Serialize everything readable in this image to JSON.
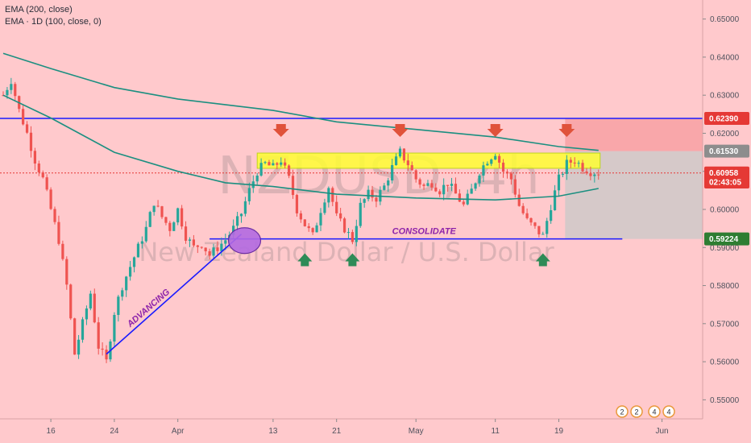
{
  "indicators": [
    "EMA (200, close)",
    "EMA · 1D (100, close, 0)"
  ],
  "watermark": {
    "symbol": "NZDUSD, 4h",
    "name": "New Zealand Dollar / U.S. Dollar"
  },
  "annotations": {
    "advancing": "ADVANCING",
    "consolidate": "CONSOLIDATE"
  },
  "price_tags": [
    {
      "label": "0.62390",
      "value": 0.6239,
      "bg": "#e53935"
    },
    {
      "label": "0.61530",
      "value": 0.6153,
      "bg": "#8d8d8d"
    },
    {
      "label": "0.60958",
      "value": 0.60958,
      "bg": "#e53935"
    },
    {
      "label": "02:43:05",
      "value": 0.6072,
      "bg": "#e53935"
    },
    {
      "label": "0.59224",
      "value": 0.59224,
      "bg": "#2e7d32"
    }
  ],
  "badges": [
    "2",
    "2",
    "4",
    "4"
  ],
  "colors": {
    "background": "#ffc9cc",
    "up": "#26a69a",
    "down": "#ef5350",
    "ema": "#1b8f80",
    "level": "#1a1aff",
    "zone": "#ffff33",
    "label": "#8e24aa"
  },
  "chart_data": {
    "type": "candlestick",
    "x_ticks": [
      "16",
      "24",
      "Apr",
      "13",
      "21",
      "May",
      "11",
      "19",
      "Jun"
    ],
    "y_ticks": [
      "0.65000",
      "0.64000",
      "0.63000",
      "0.62000",
      "0.61000",
      "0.60000",
      "0.59000",
      "0.58000",
      "0.57000",
      "0.56000",
      "0.55000"
    ],
    "ylim": [
      0.545,
      0.655
    ],
    "levels": {
      "resistance": 0.6239,
      "support": 0.59224,
      "zone_top": 0.6148,
      "zone_bottom": 0.6108
    },
    "price_anchors": [
      [
        "Mar 10",
        0.63
      ],
      [
        "Mar 11",
        0.634
      ],
      [
        "Mar 12",
        0.626
      ],
      [
        "Mar 13",
        0.62
      ],
      [
        "Mar 14",
        0.613
      ],
      [
        "Mar 15",
        0.608
      ],
      [
        "Mar 16",
        0.6
      ],
      [
        "Mar 17",
        0.592
      ],
      [
        "Mar 18",
        0.58
      ],
      [
        "Mar 19",
        0.562
      ],
      [
        "Mar 20",
        0.57
      ],
      [
        "Mar 21",
        0.578
      ],
      [
        "Mar 22",
        0.564
      ],
      [
        "Mar 23",
        0.56
      ],
      [
        "Mar 24",
        0.573
      ],
      [
        "Mar 25",
        0.58
      ],
      [
        "Mar 26",
        0.585
      ],
      [
        "Mar 27",
        0.59
      ],
      [
        "Mar 28",
        0.595
      ],
      [
        "Mar 29",
        0.602
      ],
      [
        "Mar 30",
        0.598
      ],
      [
        "Mar 31",
        0.595
      ],
      [
        "Apr 01",
        0.6
      ],
      [
        "Apr 02",
        0.593
      ],
      [
        "Apr 03",
        0.59
      ],
      [
        "Apr 04",
        0.591
      ],
      [
        "Apr 05",
        0.588
      ],
      [
        "Apr 06",
        0.59
      ],
      [
        "Apr 07",
        0.592
      ],
      [
        "Apr 08",
        0.595
      ],
      [
        "Apr 09",
        0.599
      ],
      [
        "Apr 10",
        0.605
      ],
      [
        "Apr 11",
        0.61
      ],
      [
        "Apr 12",
        0.612
      ],
      [
        "Apr 13",
        0.611
      ],
      [
        "Apr 14",
        0.613
      ],
      [
        "Apr 15",
        0.608
      ],
      [
        "Apr 16",
        0.6
      ],
      [
        "Apr 17",
        0.596
      ],
      [
        "Apr 18",
        0.593
      ],
      [
        "Apr 19",
        0.6
      ],
      [
        "Apr 20",
        0.606
      ],
      [
        "Apr 21",
        0.598
      ],
      [
        "Apr 22",
        0.595
      ],
      [
        "Apr 23",
        0.592
      ],
      [
        "Apr 24",
        0.601
      ],
      [
        "Apr 25",
        0.604
      ],
      [
        "Apr 26",
        0.603
      ],
      [
        "Apr 27",
        0.606
      ],
      [
        "Apr 28",
        0.611
      ],
      [
        "Apr 29",
        0.615
      ],
      [
        "Apr 30",
        0.612
      ],
      [
        "May 01",
        0.608
      ],
      [
        "May 02",
        0.606
      ],
      [
        "May 03",
        0.607
      ],
      [
        "May 04",
        0.605
      ],
      [
        "May 05",
        0.607
      ],
      [
        "May 06",
        0.604
      ],
      [
        "May 07",
        0.601
      ],
      [
        "May 08",
        0.605
      ],
      [
        "May 09",
        0.61
      ],
      [
        "May 10",
        0.613
      ],
      [
        "May 11",
        0.615
      ],
      [
        "May 12",
        0.61
      ],
      [
        "May 13",
        0.608
      ],
      [
        "May 14",
        0.601
      ],
      [
        "May 15",
        0.597
      ],
      [
        "May 16",
        0.595
      ],
      [
        "May 17",
        0.593
      ],
      [
        "May 18",
        0.601
      ],
      [
        "May 19",
        0.608
      ],
      [
        "May 20",
        0.612
      ],
      [
        "May 21",
        0.613
      ],
      [
        "May 22",
        0.611
      ],
      [
        "May 23",
        0.61
      ],
      [
        "May 24",
        0.6096
      ]
    ],
    "ema_200": [
      [
        "Mar 10",
        0.641
      ],
      [
        "Mar 16",
        0.637
      ],
      [
        "Mar 24",
        0.632
      ],
      [
        "Apr 01",
        0.629
      ],
      [
        "Apr 13",
        0.626
      ],
      [
        "Apr 21",
        0.623
      ],
      [
        "May 01",
        0.621
      ],
      [
        "May 11",
        0.619
      ],
      [
        "May 19",
        0.6165
      ],
      [
        "May 24",
        0.6155
      ]
    ],
    "ema_1d_100": [
      [
        "Mar 10",
        0.63
      ],
      [
        "Mar 16",
        0.624
      ],
      [
        "Mar 24",
        0.615
      ],
      [
        "Apr 01",
        0.61
      ],
      [
        "Apr 07",
        0.607
      ],
      [
        "Apr 13",
        0.606
      ],
      [
        "Apr 21",
        0.604
      ],
      [
        "May 01",
        0.603
      ],
      [
        "May 11",
        0.6025
      ],
      [
        "May 19",
        0.6035
      ],
      [
        "May 24",
        0.6055
      ]
    ]
  }
}
